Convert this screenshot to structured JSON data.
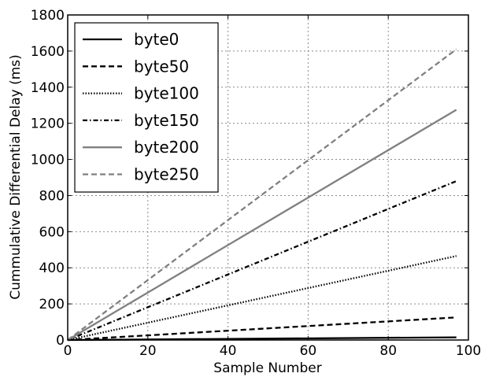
{
  "chart_data": {
    "type": "line",
    "xlabel": "Sample Number",
    "ylabel": "Cummulative Differential Delay (ms)",
    "xlim": [
      0,
      100
    ],
    "ylim": [
      0,
      1800
    ],
    "xticks": [
      0,
      20,
      40,
      60,
      80,
      100
    ],
    "yticks": [
      0,
      200,
      400,
      600,
      800,
      1000,
      1200,
      1400,
      1600,
      1800
    ],
    "grid": true,
    "legend": "top-left",
    "series": [
      {
        "name": "byte0",
        "x": [
          0,
          97
        ],
        "y": [
          0,
          15
        ],
        "color": "#000000",
        "dash": "solid"
      },
      {
        "name": "byte50",
        "x": [
          0,
          97
        ],
        "y": [
          0,
          125
        ],
        "color": "#000000",
        "dash": "dashed"
      },
      {
        "name": "byte100",
        "x": [
          0,
          97
        ],
        "y": [
          0,
          465
        ],
        "color": "#000000",
        "dash": "dotted"
      },
      {
        "name": "byte150",
        "x": [
          0,
          97
        ],
        "y": [
          0,
          880
        ],
        "color": "#000000",
        "dash": "dashdot"
      },
      {
        "name": "byte200",
        "x": [
          0,
          97
        ],
        "y": [
          0,
          1275
        ],
        "color": "#808080",
        "dash": "solid"
      },
      {
        "name": "byte250",
        "x": [
          0,
          97
        ],
        "y": [
          0,
          1610
        ],
        "color": "#808080",
        "dash": "dashed"
      }
    ]
  }
}
